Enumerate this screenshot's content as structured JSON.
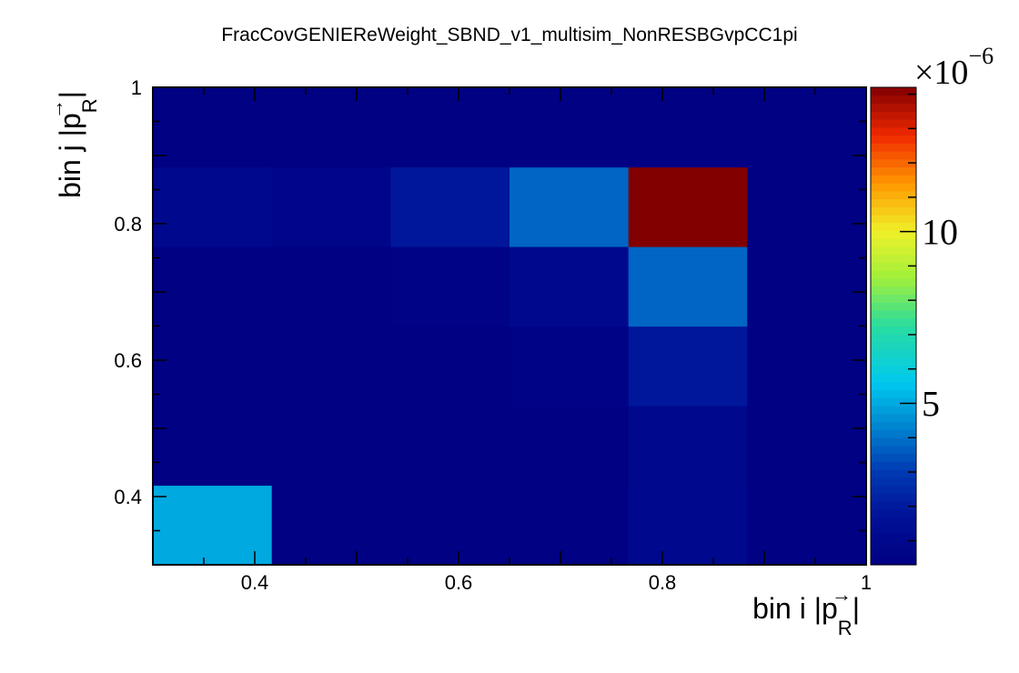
{
  "chart_data": {
    "type": "heatmap",
    "title": "FracCovGENIEReWeight_SBND_v1_multisim_NonRESBGvpCC1pi",
    "xlabel": {
      "text": "bin i |p",
      "arrow": "→",
      "subscript": "R",
      "close": "|"
    },
    "ylabel": {
      "text": "bin j |p",
      "arrow": "→",
      "subscript": "R",
      "close": "|"
    },
    "x_edges": [
      0.3,
      0.4167,
      0.5333,
      0.65,
      0.7667,
      0.8833,
      1.0
    ],
    "y_edges": [
      0.3,
      0.4167,
      0.5333,
      0.65,
      0.7667,
      0.8833,
      1.0
    ],
    "xlim": [
      0.3,
      1.0
    ],
    "ylim": [
      0.3,
      1.0
    ],
    "x_tick_labels": [
      {
        "value": 0.4,
        "label": "0.4"
      },
      {
        "value": 0.6,
        "label": "0.6"
      },
      {
        "value": 0.8,
        "label": "0.8"
      },
      {
        "value": 1.0,
        "label": "1"
      }
    ],
    "y_tick_labels": [
      {
        "value": 0.4,
        "label": "0.4"
      },
      {
        "value": 0.6,
        "label": "0.6"
      },
      {
        "value": 0.8,
        "label": "0.8"
      },
      {
        "value": 1.0,
        "label": "1"
      }
    ],
    "z_range": [
      0.3,
      14.2
    ],
    "z_multiplier": {
      "base": "×10",
      "exponent": "−6"
    },
    "z_tick_labels": [
      {
        "value": 5,
        "label": "5"
      },
      {
        "value": 10,
        "label": "10"
      }
    ],
    "values_rows_bottom_to_top": [
      [
        5.0,
        0.4,
        0.4,
        0.4,
        1.1,
        0.4
      ],
      [
        0.4,
        0.4,
        0.4,
        0.4,
        1.0,
        0.4
      ],
      [
        0.4,
        0.4,
        0.4,
        0.6,
        1.9,
        0.4
      ],
      [
        0.4,
        0.4,
        0.6,
        1.1,
        3.8,
        0.4
      ],
      [
        1.1,
        0.8,
        1.9,
        3.8,
        14.2,
        0.4
      ],
      [
        0.4,
        0.4,
        0.4,
        0.4,
        0.4,
        0.4
      ]
    ],
    "colormap": "rainbow",
    "grid": false
  }
}
